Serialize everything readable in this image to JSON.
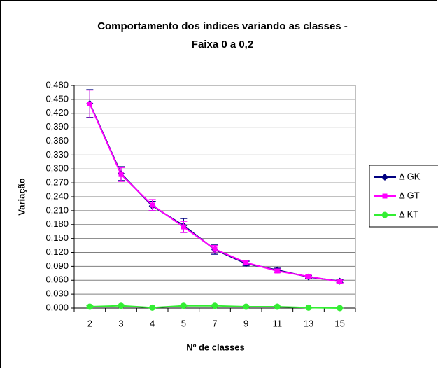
{
  "chart_data": {
    "type": "line",
    "title": [
      "Comportamento dos índices variando as classes -",
      "Faixa 0 a 0,2"
    ],
    "xlabel": "Nº de classes",
    "ylabel": "Variação",
    "categories": [
      "2",
      "3",
      "4",
      "5",
      "7",
      "9",
      "11",
      "13",
      "15"
    ],
    "ylim": [
      0,
      0.48
    ],
    "yticks": [
      {
        "value": 0,
        "label": "0,000"
      },
      {
        "value": 0.03,
        "label": "0,030"
      },
      {
        "value": 0.06,
        "label": "0,060"
      },
      {
        "value": 0.09,
        "label": "0,090"
      },
      {
        "value": 0.12,
        "label": "0,120"
      },
      {
        "value": 0.15,
        "label": "0,150"
      },
      {
        "value": 0.18,
        "label": "0,180"
      },
      {
        "value": 0.21,
        "label": "0,210"
      },
      {
        "value": 0.24,
        "label": "0,240"
      },
      {
        "value": 0.27,
        "label": "0,270"
      },
      {
        "value": 0.3,
        "label": "0,300"
      },
      {
        "value": 0.33,
        "label": "0,330"
      },
      {
        "value": 0.36,
        "label": "0,360"
      },
      {
        "value": 0.39,
        "label": "0,390"
      },
      {
        "value": 0.42,
        "label": "0,420"
      },
      {
        "value": 0.45,
        "label": "0,450"
      },
      {
        "value": 0.48,
        "label": "0,480"
      }
    ],
    "grid": true,
    "legend": "right",
    "series": [
      {
        "name": "Δ GK",
        "color": "#000080",
        "marker": "diamond",
        "values": [
          0.441,
          0.29,
          0.22,
          0.178,
          0.126,
          0.096,
          0.082,
          0.067,
          0.058
        ],
        "errors": [
          0.03,
          0.015,
          0.01,
          0.015,
          0.01,
          0.005,
          0.004,
          0.003,
          0.003
        ]
      },
      {
        "name": "Δ GT",
        "color": "#ff00ff",
        "marker": "square",
        "values": [
          0.44,
          0.288,
          0.222,
          0.175,
          0.127,
          0.098,
          0.08,
          0.068,
          0.057
        ],
        "errors": [
          0.03,
          0.015,
          0.012,
          0.012,
          0.008,
          0.005,
          0.004,
          0.003,
          0.003
        ]
      },
      {
        "name": "Δ KT",
        "color": "#33ee33",
        "marker": "circle",
        "values": [
          0.003,
          0.005,
          0.001,
          0.005,
          0.005,
          0.003,
          0.003,
          0.001,
          0.0
        ],
        "errors": [
          0.002,
          0.002,
          0.001,
          0.002,
          0.002,
          0.001,
          0.001,
          0.001,
          0.0
        ]
      }
    ]
  }
}
